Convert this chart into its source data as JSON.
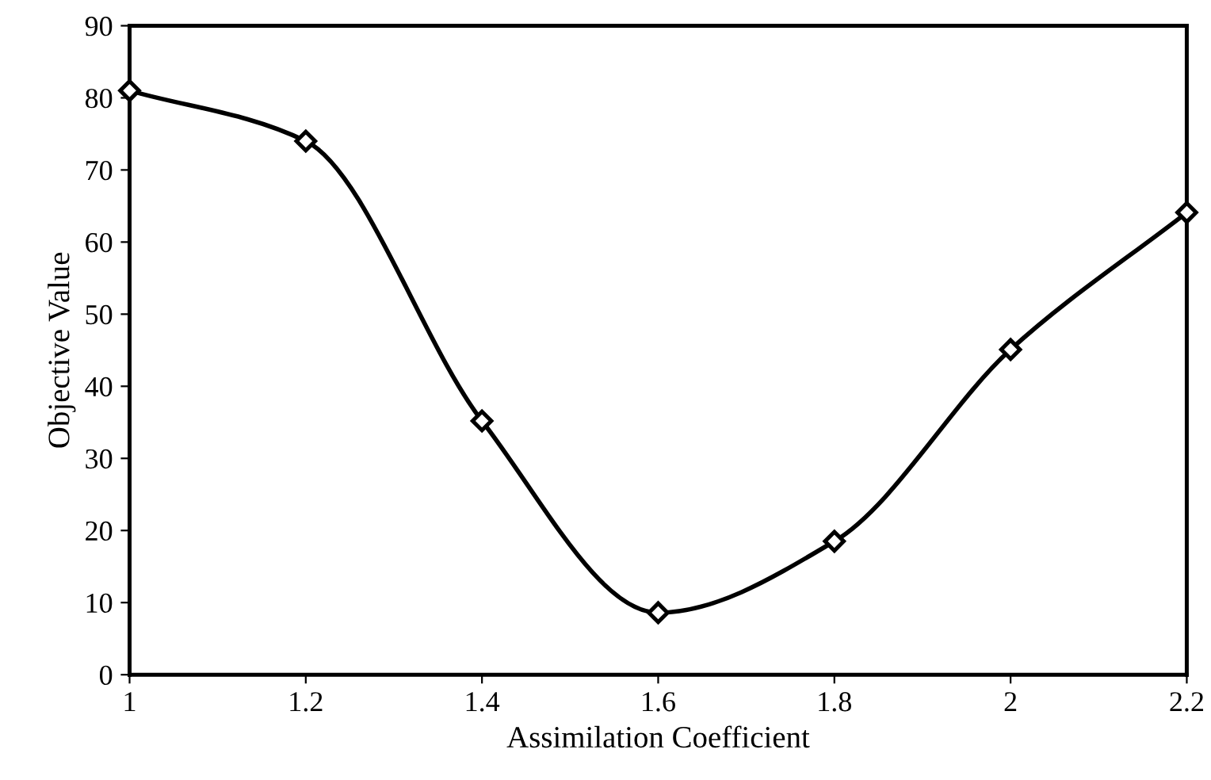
{
  "chart_data": {
    "type": "line",
    "xlabel": "Assimilation Coefficient",
    "ylabel": "Objective Value",
    "x": [
      1,
      1.2,
      1.4,
      1.6,
      1.8,
      2,
      2.2
    ],
    "series": [
      {
        "color": "#000000",
        "values": [
          81,
          74,
          35.2,
          8.6,
          18.5,
          45.1,
          64.1
        ]
      }
    ],
    "xlim": [
      1,
      2.2
    ],
    "xticks": [
      1,
      1.2,
      1.4,
      1.6,
      1.8,
      2,
      2.2
    ],
    "ylim": [
      0,
      90
    ],
    "yticks": [
      0,
      10,
      20,
      30,
      40,
      50,
      60,
      70,
      80,
      90
    ],
    "grid": false,
    "legend": false,
    "marker": "diamond",
    "line_style": "solid"
  }
}
